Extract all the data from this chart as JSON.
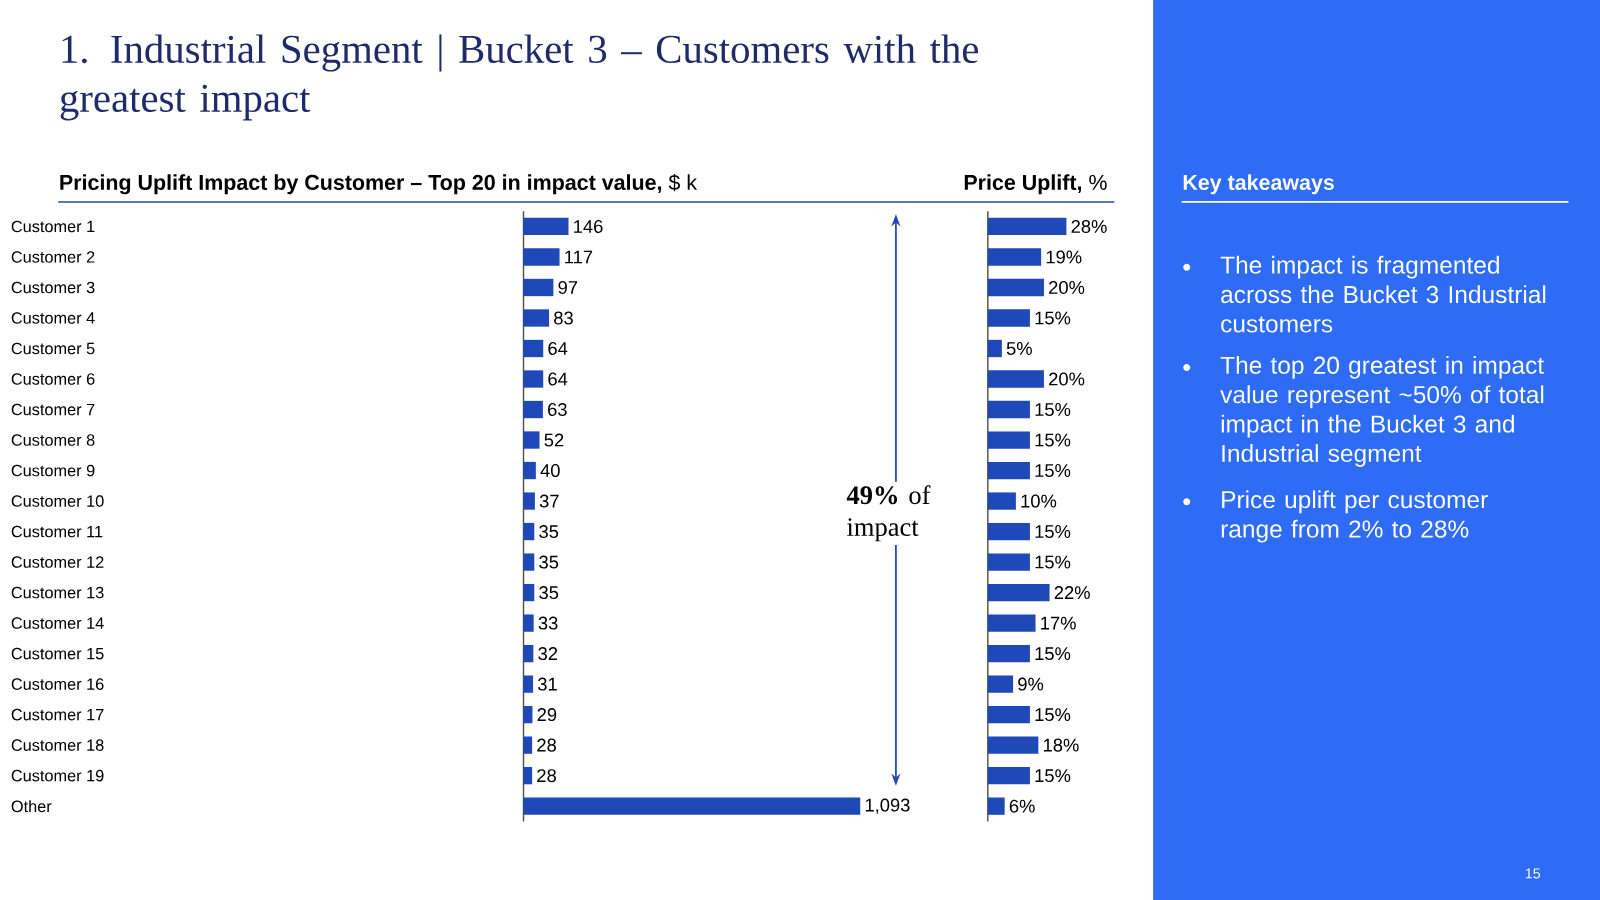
{
  "chart_data": [
    {
      "type": "bar",
      "orientation": "horizontal",
      "title": "1. Industrial Segment | Bucket 3 – Customers with the greatest impact",
      "subtitle": "**Pricing Uplift Impact by Customer – Top 20 in impact value,** $ k",
      "categories": [
        "Customer 1",
        "Customer 2",
        "Customer 3",
        "Customer 4",
        "Customer 5",
        "Customer 6",
        "Customer 7",
        "Customer 8",
        "Customer 9",
        "Customer 10",
        "Customer 11",
        "Customer 12",
        "Customer 13",
        "Customer 14",
        "Customer 15",
        "Customer 16",
        "Customer 17",
        "Customer 18",
        "Customer 19",
        "Other"
      ],
      "values": [
        146,
        117,
        97,
        83,
        64,
        64,
        63,
        52,
        40,
        37,
        35,
        35,
        35,
        33,
        32,
        31,
        29,
        28,
        28,
        1093
      ],
      "value_labels": [
        "146",
        "117",
        "97",
        "83",
        "64",
        "64",
        "63",
        "52",
        "40",
        "37",
        "35",
        "35",
        "35",
        "33",
        "32",
        "31",
        "29",
        "28",
        "28",
        "1,093"
      ],
      "color": "#1f48b8",
      "annotations": [
        "**49%** of impact"
      ]
    },
    {
      "type": "bar",
      "orientation": "horizontal",
      "title": "**Price Uplift,** %",
      "categories": [
        null,
        null,
        null,
        null,
        null,
        null,
        null,
        null,
        null,
        null,
        null,
        null,
        null,
        null,
        null,
        null,
        null,
        null,
        null,
        null
      ],
      "values": [
        28,
        19,
        20,
        15,
        5,
        20,
        15,
        15,
        15,
        10,
        15,
        15,
        22,
        17,
        15,
        9,
        15,
        18,
        15,
        6
      ],
      "value_labels": [
        "28%",
        "19%",
        "20%",
        "15%",
        "5%",
        "20%",
        "15%",
        "15%",
        "15%",
        "10%",
        "15%",
        "15%",
        "22%",
        "17%",
        "15%",
        "9%",
        "15%",
        "18%",
        "15%",
        "6%"
      ],
      "color": "#1f48b8"
    },
    {
      "type": "other",
      "title": "Key takeaways",
      "annotations": [
        "The impact is fragmented across the Bucket 3 Industrial customers",
        "The top 20 greatest in impact value represent ~50% of total impact in the Bucket 3 and Industrial segment",
        "Price uplift per customer range from 2% to 28%",
        "15"
      ]
    }
  ]
}
